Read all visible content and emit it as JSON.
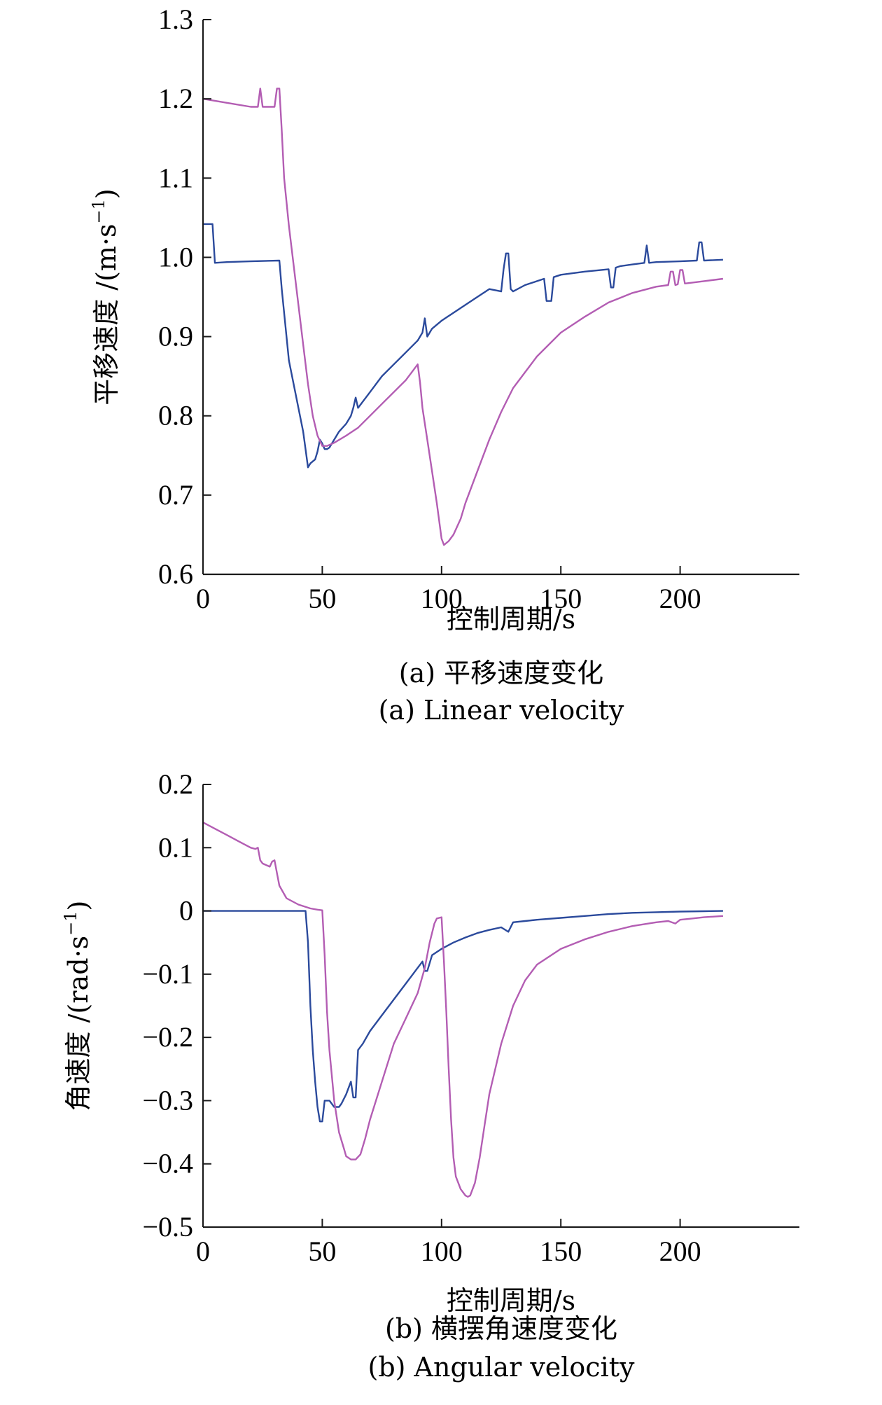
{
  "chart_data": [
    {
      "type": "line",
      "xlabel": "控制周期/s",
      "ylabel": "平移速度 /(m·s⁻¹)",
      "ylabel_main": "平移速度 /(m·s",
      "ylabel_sup": "−1",
      "ylabel_tail": ")",
      "caption_cn": "(a) 平移速度变化",
      "caption_en": "(a) Linear velocity",
      "xlim": [
        0,
        250
      ],
      "ylim": [
        0.6,
        1.3
      ],
      "xticks": [
        "0",
        "50",
        "100",
        "150",
        "200"
      ],
      "xtick_values": [
        0,
        50,
        100,
        150,
        200
      ],
      "yticks": [
        "1.3",
        "1.2",
        "1.1",
        "1.0",
        "0.9",
        "0.8",
        "0.7",
        "0.6"
      ],
      "ytick_values": [
        1.3,
        1.2,
        1.1,
        1.0,
        0.9,
        0.8,
        0.7,
        0.6
      ],
      "series": [
        {
          "color": "#2b4a9c",
          "x": [
            0,
            4,
            5,
            10,
            20,
            32,
            33,
            34,
            35,
            36,
            38,
            40,
            42,
            44,
            45,
            47,
            48,
            49,
            50,
            51,
            52,
            53,
            55,
            57,
            60,
            62,
            63,
            64,
            65,
            70,
            75,
            80,
            85,
            90,
            92,
            93,
            94,
            96,
            100,
            105,
            110,
            115,
            120,
            125,
            126,
            127,
            128,
            129,
            130,
            135,
            140,
            143,
            144,
            146,
            147,
            150,
            160,
            170,
            171,
            172,
            173,
            175,
            180,
            185,
            186,
            187,
            190,
            200,
            207,
            208,
            209,
            210,
            218
          ],
          "y": [
            1.042,
            1.042,
            0.993,
            0.994,
            0.995,
            0.996,
            0.96,
            0.93,
            0.9,
            0.87,
            0.84,
            0.81,
            0.78,
            0.735,
            0.74,
            0.745,
            0.755,
            0.77,
            0.765,
            0.758,
            0.758,
            0.76,
            0.77,
            0.78,
            0.79,
            0.8,
            0.81,
            0.823,
            0.81,
            0.83,
            0.85,
            0.865,
            0.88,
            0.895,
            0.905,
            0.923,
            0.9,
            0.91,
            0.92,
            0.93,
            0.94,
            0.95,
            0.96,
            0.957,
            0.985,
            1.005,
            1.005,
            0.96,
            0.957,
            0.965,
            0.97,
            0.973,
            0.945,
            0.945,
            0.975,
            0.978,
            0.982,
            0.985,
            0.962,
            0.962,
            0.987,
            0.989,
            0.991,
            0.993,
            1.015,
            0.993,
            0.994,
            0.995,
            0.996,
            1.019,
            1.019,
            0.996,
            0.997
          ]
        },
        {
          "color": "#b35db3",
          "x": [
            0,
            10,
            20,
            23,
            24,
            25,
            26,
            30,
            31,
            32,
            33,
            34,
            36,
            38,
            40,
            42,
            44,
            46,
            48,
            50,
            52,
            55,
            60,
            65,
            70,
            75,
            80,
            85,
            90,
            91,
            92,
            94,
            96,
            98,
            100,
            101,
            103,
            105,
            108,
            110,
            115,
            120,
            125,
            130,
            140,
            150,
            160,
            170,
            180,
            190,
            195,
            196,
            197,
            198,
            199,
            200,
            201,
            202,
            205,
            210,
            218
          ],
          "y": [
            1.2,
            1.195,
            1.19,
            1.19,
            1.213,
            1.19,
            1.19,
            1.19,
            1.213,
            1.213,
            1.16,
            1.1,
            1.04,
            0.99,
            0.94,
            0.89,
            0.84,
            0.8,
            0.775,
            0.762,
            0.762,
            0.766,
            0.775,
            0.785,
            0.8,
            0.815,
            0.83,
            0.845,
            0.865,
            0.842,
            0.81,
            0.77,
            0.73,
            0.69,
            0.645,
            0.637,
            0.642,
            0.65,
            0.67,
            0.69,
            0.73,
            0.77,
            0.805,
            0.835,
            0.875,
            0.905,
            0.925,
            0.943,
            0.955,
            0.963,
            0.965,
            0.982,
            0.982,
            0.965,
            0.966,
            0.984,
            0.984,
            0.967,
            0.968,
            0.97,
            0.973
          ]
        }
      ]
    },
    {
      "type": "line",
      "xlabel": "控制周期/s",
      "ylabel": "角速度 /(rad·s⁻¹)",
      "ylabel_main": "角速度 /(rad·s",
      "ylabel_sup": "−1",
      "ylabel_tail": ")",
      "caption_cn": "(b) 横摆角速度变化",
      "caption_en": "(b) Angular velocity",
      "xlim": [
        0,
        250
      ],
      "ylim": [
        -0.5,
        0.2
      ],
      "xticks": [
        "0",
        "50",
        "100",
        "150",
        "200"
      ],
      "xtick_values": [
        0,
        50,
        100,
        150,
        200
      ],
      "yticks": [
        "0.2",
        "0.1",
        "0",
        "−0.1",
        "−0.2",
        "−0.3",
        "−0.4",
        "−0.5"
      ],
      "ytick_values": [
        0.2,
        0.1,
        0,
        -0.1,
        -0.2,
        -0.3,
        -0.4,
        -0.5
      ],
      "series": [
        {
          "color": "#2b4a9c",
          "x": [
            0,
            10,
            20,
            30,
            40,
            43,
            44,
            45,
            46,
            47,
            48,
            49,
            50,
            51,
            52,
            53,
            55,
            57,
            58,
            60,
            62,
            63,
            64,
            65,
            67,
            70,
            75,
            80,
            85,
            90,
            92,
            93,
            94,
            96,
            100,
            105,
            110,
            115,
            120,
            125,
            128,
            130,
            135,
            140,
            150,
            160,
            170,
            180,
            190,
            200,
            210,
            218
          ],
          "y": [
            0.0,
            0.0,
            0.0,
            0.0,
            0.0,
            0.0,
            -0.05,
            -0.15,
            -0.22,
            -0.27,
            -0.31,
            -0.333,
            -0.333,
            -0.3,
            -0.3,
            -0.3,
            -0.31,
            -0.31,
            -0.305,
            -0.29,
            -0.27,
            -0.295,
            -0.295,
            -0.22,
            -0.21,
            -0.19,
            -0.165,
            -0.14,
            -0.115,
            -0.09,
            -0.08,
            -0.095,
            -0.095,
            -0.07,
            -0.06,
            -0.05,
            -0.042,
            -0.035,
            -0.03,
            -0.026,
            -0.033,
            -0.018,
            -0.016,
            -0.014,
            -0.011,
            -0.008,
            -0.005,
            -0.003,
            -0.002,
            -0.001,
            -0.0005,
            0.0
          ]
        },
        {
          "color": "#b35db3",
          "x": [
            0,
            5,
            10,
            15,
            20,
            22,
            23,
            24,
            25,
            28,
            29,
            30,
            31,
            32,
            35,
            40,
            45,
            48,
            50,
            51,
            52,
            53,
            55,
            57,
            59,
            60,
            62,
            64,
            66,
            68,
            70,
            75,
            80,
            85,
            90,
            93,
            95,
            97,
            98,
            100,
            101,
            102,
            103,
            104,
            105,
            106,
            108,
            110,
            111,
            112,
            114,
            116,
            118,
            120,
            125,
            130,
            135,
            140,
            150,
            160,
            170,
            180,
            190,
            195,
            198,
            200,
            205,
            210,
            218
          ],
          "y": [
            0.14,
            0.13,
            0.12,
            0.11,
            0.1,
            0.098,
            0.1,
            0.08,
            0.075,
            0.07,
            0.078,
            0.08,
            0.06,
            0.04,
            0.02,
            0.01,
            0.004,
            0.002,
            0.001,
            -0.07,
            -0.16,
            -0.22,
            -0.3,
            -0.35,
            -0.375,
            -0.388,
            -0.393,
            -0.393,
            -0.385,
            -0.36,
            -0.33,
            -0.27,
            -0.21,
            -0.17,
            -0.13,
            -0.09,
            -0.05,
            -0.02,
            -0.012,
            -0.01,
            -0.08,
            -0.16,
            -0.25,
            -0.33,
            -0.39,
            -0.42,
            -0.44,
            -0.45,
            -0.452,
            -0.45,
            -0.43,
            -0.39,
            -0.34,
            -0.29,
            -0.21,
            -0.15,
            -0.11,
            -0.085,
            -0.06,
            -0.045,
            -0.033,
            -0.024,
            -0.018,
            -0.016,
            -0.02,
            -0.014,
            -0.012,
            -0.01,
            -0.008
          ]
        }
      ]
    }
  ]
}
